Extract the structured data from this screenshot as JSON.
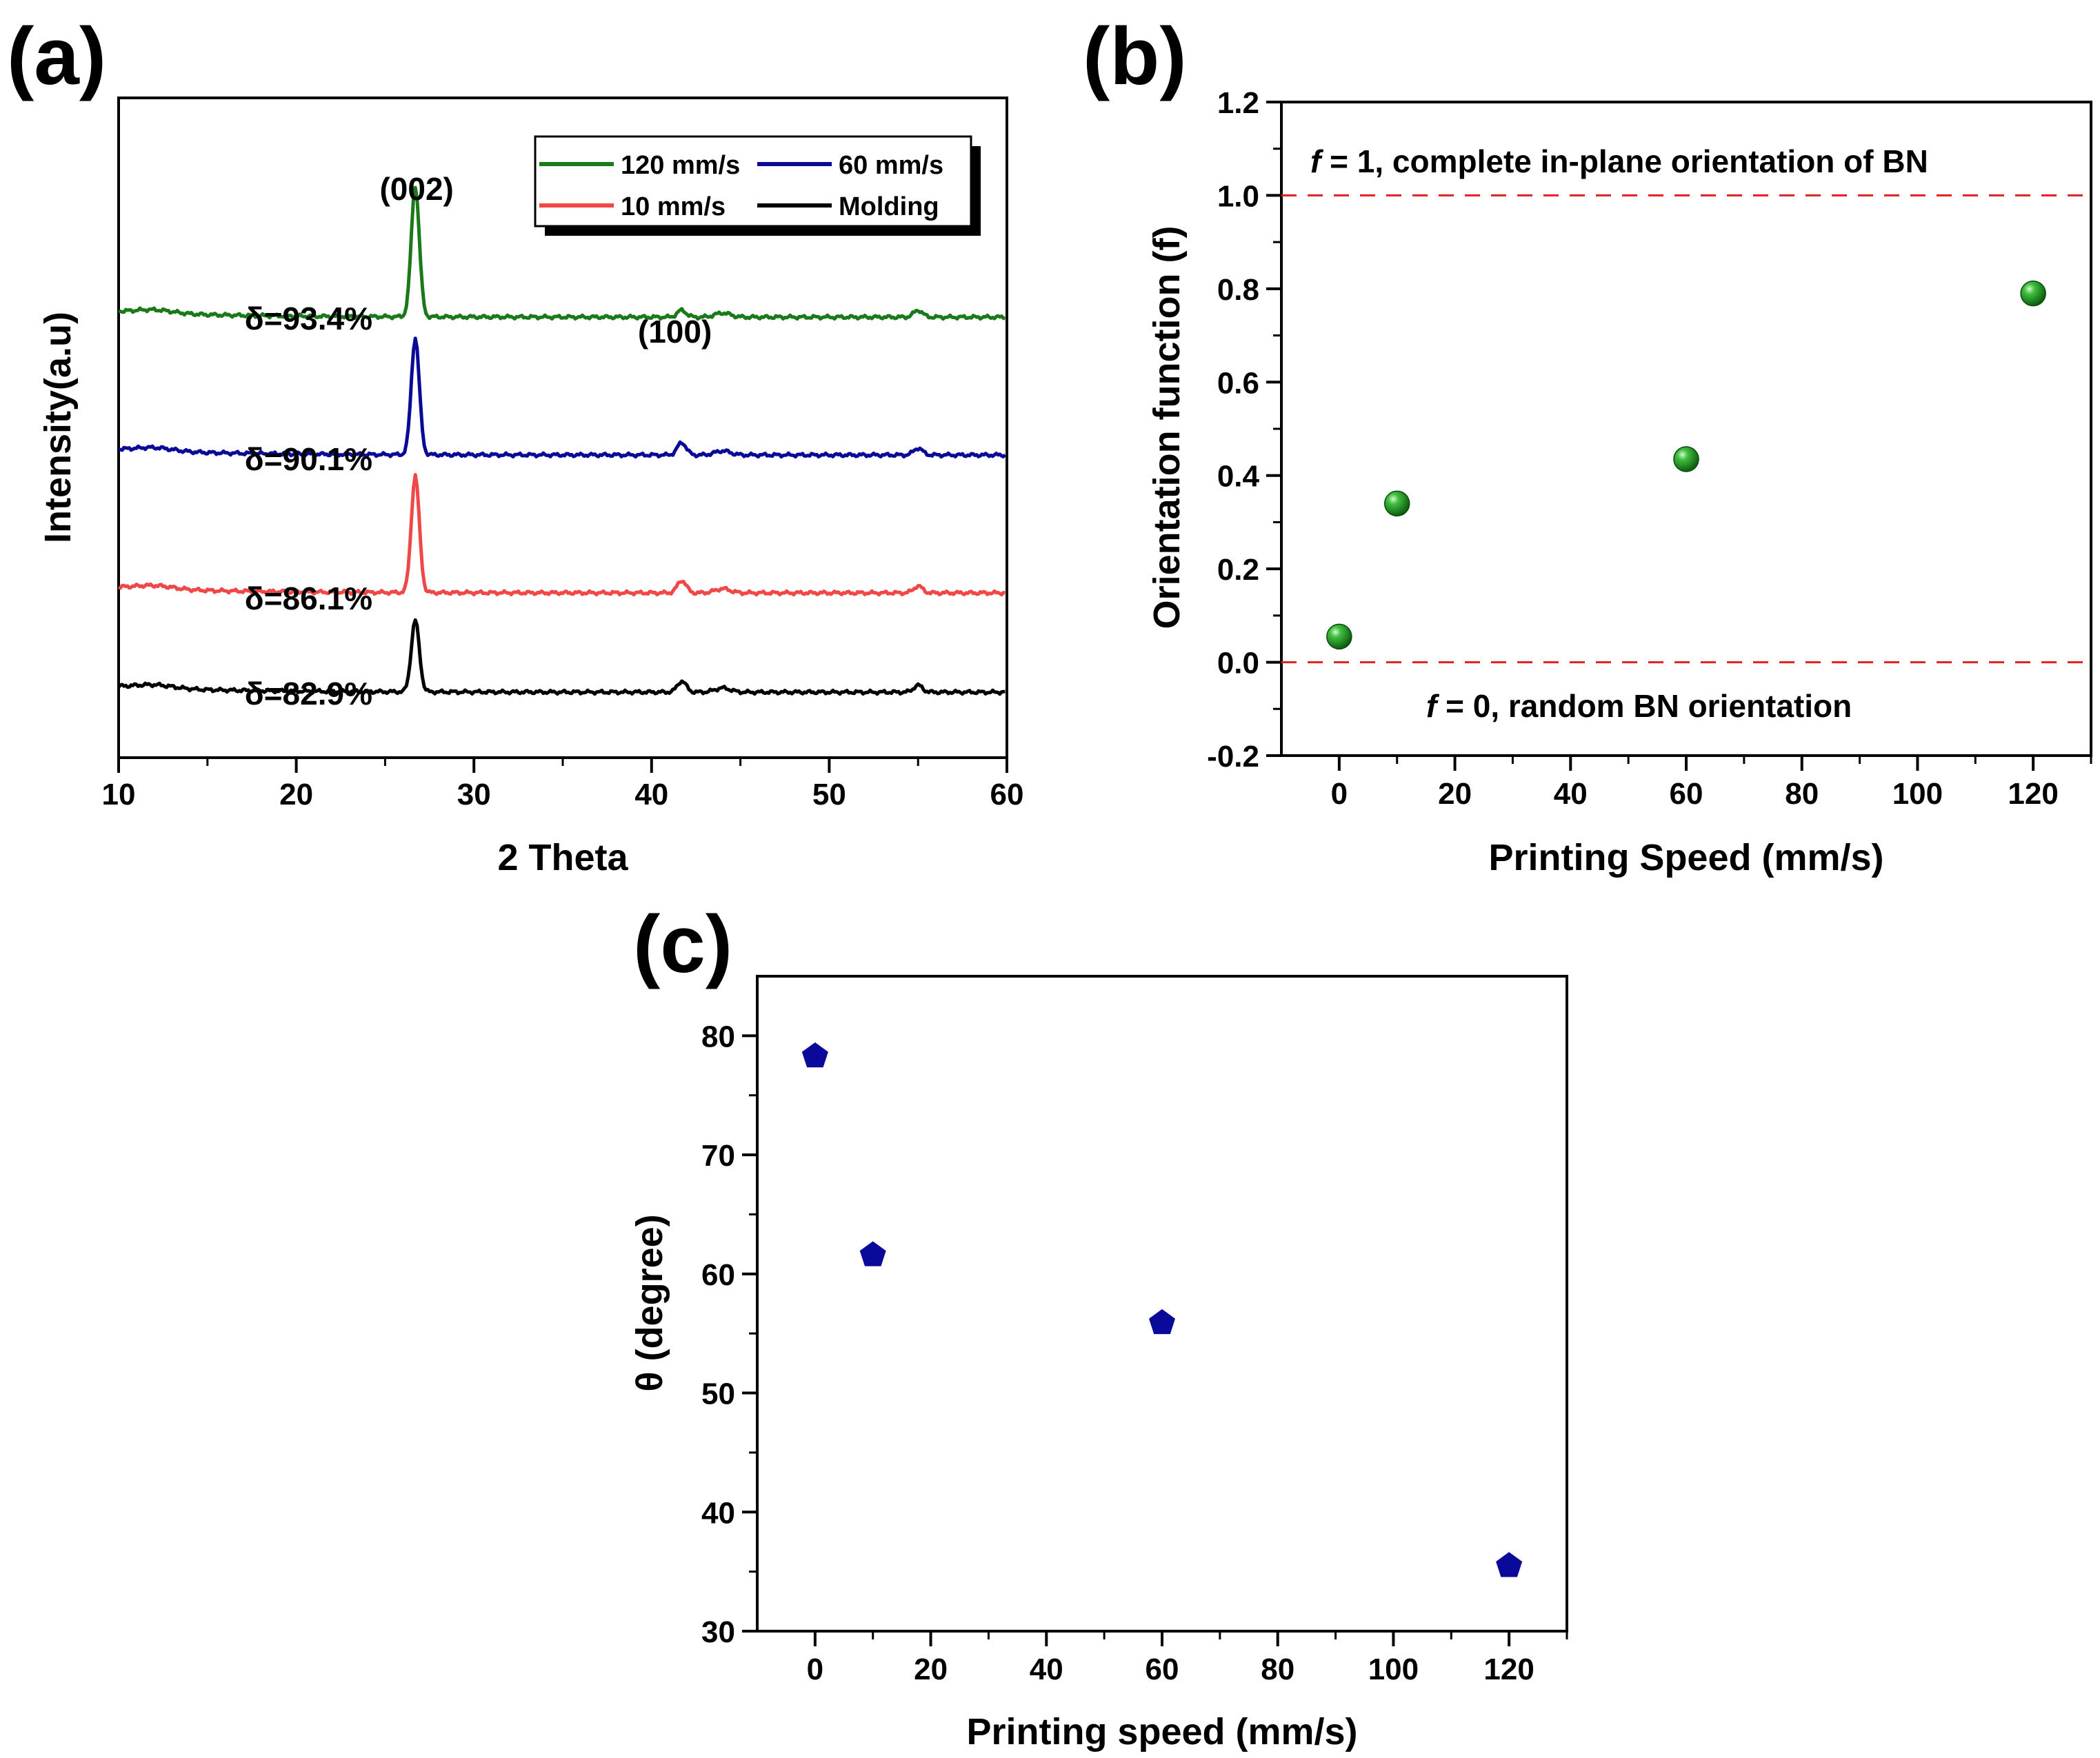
{
  "chart_data": [
    {
      "id": "a",
      "type": "line",
      "panel_label": "(a)",
      "xlabel": "2 Theta",
      "ylabel": "Intensity(a.u)",
      "xlim": [
        10,
        60
      ],
      "xticks": [
        10,
        20,
        30,
        40,
        50,
        60
      ],
      "yticks": [],
      "peaks": [
        {
          "label": "(002)",
          "x": 26.7
        },
        {
          "label": "(100)",
          "x": 41.7
        }
      ],
      "series": [
        {
          "name": "120 mm/s",
          "color": "#1a7a1a",
          "offset": 3.0,
          "peak002": 0.95,
          "peak100": 0.05,
          "annotation": "δ=93.4%"
        },
        {
          "name": "60 mm/s",
          "color": "#0a0a96",
          "offset": 2.0,
          "peak002": 0.85,
          "peak100": 0.09,
          "annotation": "δ=90.1%"
        },
        {
          "name": "10 mm/s",
          "color": "#f04848",
          "offset": 1.0,
          "peak002": 0.85,
          "peak100": 0.09,
          "annotation": "δ=86.1%"
        },
        {
          "name": "Molding",
          "color": "#000000",
          "offset": 0.28,
          "peak002": 0.52,
          "peak100": 0.08,
          "annotation": "δ=82.9%"
        }
      ],
      "legend": [
        "120 mm/s",
        "60 mm/s",
        "10 mm/s",
        "Molding"
      ]
    },
    {
      "id": "b",
      "type": "scatter",
      "panel_label": "(b)",
      "xlabel": "Printing Speed (mm/s)",
      "ylabel": "Orientation function (f)",
      "xlim": [
        -10,
        130
      ],
      "ylim": [
        -0.2,
        1.2
      ],
      "xticks": [
        0,
        20,
        40,
        60,
        80,
        100,
        120
      ],
      "yticks": [
        -0.2,
        0.0,
        0.2,
        0.4,
        0.6,
        0.8,
        1.0,
        1.2
      ],
      "ytick_labels": [
        "-0.2",
        "0.0",
        "0.2",
        "0.4",
        "0.6",
        "0.8",
        "1.0",
        "1.2"
      ],
      "x": [
        0,
        10,
        60,
        120
      ],
      "y": [
        0.055,
        0.34,
        0.435,
        0.79
      ],
      "marker_color": "#1f9a1f",
      "ref_lines": [
        {
          "y": 1.0,
          "color": "#e02020",
          "italic_part": "f",
          "text": " = 1, complete in-plane orientation of BN"
        },
        {
          "y": 0.0,
          "color": "#e02020",
          "italic_part": "f",
          "text": " = 0, random BN orientation"
        }
      ]
    },
    {
      "id": "c",
      "type": "scatter",
      "panel_label": "(c)",
      "xlabel": "Printing speed (mm/s)",
      "ylabel": "θ (degree)",
      "xlim": [
        -10,
        130
      ],
      "ylim": [
        30,
        85
      ],
      "xticks": [
        0,
        20,
        40,
        60,
        80,
        100,
        120
      ],
      "yticks": [
        30,
        40,
        50,
        60,
        70,
        80
      ],
      "x": [
        0,
        10,
        60,
        120
      ],
      "y": [
        78.4,
        61.7,
        56.0,
        35.6
      ],
      "marker_color": "#0a0a9a"
    }
  ]
}
